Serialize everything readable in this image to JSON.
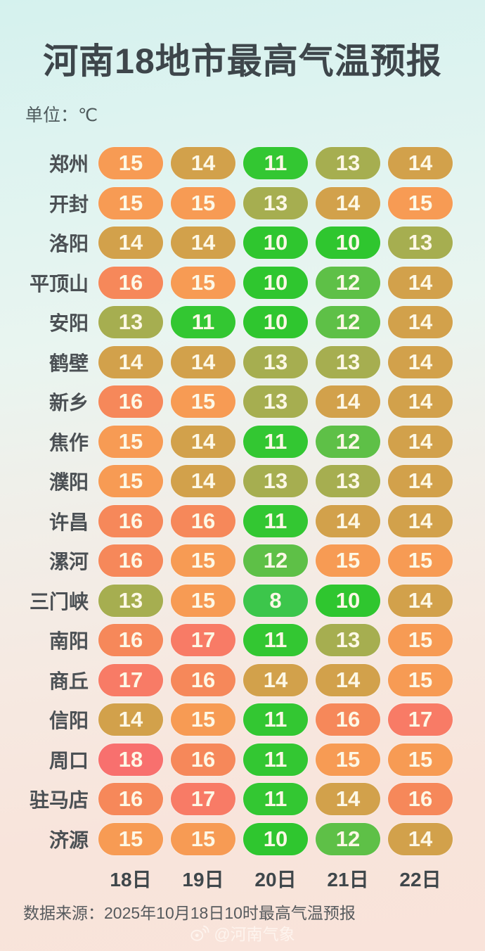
{
  "title": "河南18地市最高气温预报",
  "unit_label": "单位：℃",
  "chart_data": {
    "type": "heatmap",
    "title": "河南18地市最高气温预报",
    "unit": "℃",
    "columns": [
      "18日",
      "19日",
      "20日",
      "21日",
      "22日"
    ],
    "rows": [
      {
        "city": "郑州",
        "temps": [
          15,
          14,
          11,
          13,
          14
        ]
      },
      {
        "city": "开封",
        "temps": [
          15,
          15,
          13,
          14,
          15
        ]
      },
      {
        "city": "洛阳",
        "temps": [
          14,
          14,
          10,
          10,
          13
        ]
      },
      {
        "city": "平顶山",
        "temps": [
          16,
          15,
          10,
          12,
          14
        ]
      },
      {
        "city": "安阳",
        "temps": [
          13,
          11,
          10,
          12,
          14
        ]
      },
      {
        "city": "鹤壁",
        "temps": [
          14,
          14,
          13,
          13,
          14
        ]
      },
      {
        "city": "新乡",
        "temps": [
          16,
          15,
          13,
          14,
          14
        ]
      },
      {
        "city": "焦作",
        "temps": [
          15,
          14,
          11,
          12,
          14
        ]
      },
      {
        "city": "濮阳",
        "temps": [
          15,
          14,
          13,
          13,
          14
        ]
      },
      {
        "city": "许昌",
        "temps": [
          16,
          16,
          11,
          14,
          14
        ]
      },
      {
        "city": "漯河",
        "temps": [
          16,
          15,
          12,
          15,
          15
        ]
      },
      {
        "city": "三门峡",
        "temps": [
          13,
          15,
          8,
          10,
          14
        ]
      },
      {
        "city": "南阳",
        "temps": [
          16,
          17,
          11,
          13,
          15
        ]
      },
      {
        "city": "商丘",
        "temps": [
          17,
          16,
          14,
          14,
          15
        ]
      },
      {
        "city": "信阳",
        "temps": [
          14,
          15,
          11,
          16,
          17
        ]
      },
      {
        "city": "周口",
        "temps": [
          18,
          16,
          11,
          15,
          15
        ]
      },
      {
        "city": "驻马店",
        "temps": [
          16,
          17,
          11,
          14,
          16
        ]
      },
      {
        "city": "济源",
        "temps": [
          15,
          15,
          10,
          12,
          14
        ]
      }
    ],
    "color_scale": {
      "8": "#3cc64b",
      "10": "#2fc62f",
      "11": "#33c732",
      "12": "#5ec047",
      "13": "#a6ae50",
      "14": "#d2a14b",
      "15": "#f79b54",
      "16": "#f6885a",
      "17": "#f87b66",
      "18": "#f8706e"
    }
  },
  "footer": {
    "source": "数据来源：2025年10月18日10时最高气温预报",
    "watermark": "@河南气象"
  }
}
